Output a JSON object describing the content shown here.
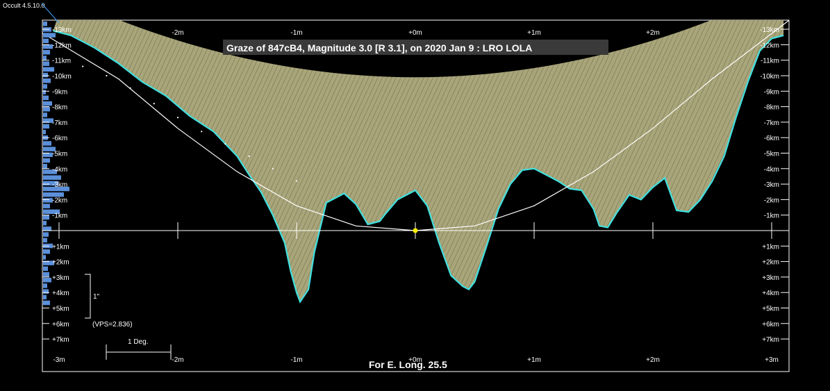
{
  "app_title": "Occult 4.5.10.0",
  "colors": {
    "background": "#000000",
    "limb_fill": "#a9a57a",
    "limb_edge": "#40e0e0",
    "profile_bar": "#5b8fd9",
    "grid": "#ffffff",
    "observer_marker": "#ffee00"
  },
  "chart_data": {
    "type": "line",
    "title": "Graze of  847cB4,  Magnitude 3.0 [R 3.1],  on 2020 Jan  9  :  LRO LOLA",
    "footer": "For E. Long. 25.5",
    "x_tick_labels_top": [
      "-3m",
      "-2m",
      "-1m",
      "+0m",
      "+1m",
      "+2m",
      "+3m"
    ],
    "x_tick_labels_bottom": [
      "-3m",
      "-2m",
      "-1m",
      "+0m",
      "+1m",
      "+2m",
      "+3m"
    ],
    "x_ticks": [
      -3,
      -2,
      -1,
      0,
      1,
      2,
      3
    ],
    "xlim": [
      -3.15,
      3.15
    ],
    "ylim": [
      -14,
      9
    ],
    "y_tick_labels": [
      "-13km",
      "-12km",
      "-11km",
      "-10km",
      "-9km",
      "-8km",
      "-7km",
      "-6km",
      "-5km",
      "-4km",
      "-3km",
      "-2km",
      "-1km",
      "+1km",
      "+2km",
      "+3km",
      "+4km",
      "+5km",
      "+6km",
      "+7km"
    ],
    "y_ticks": [
      -13,
      -12,
      -11,
      -10,
      -9,
      -8,
      -7,
      -6,
      -5,
      -4,
      -3,
      -2,
      -1,
      1,
      2,
      3,
      4,
      5,
      6,
      7
    ],
    "scale_label": "1\"",
    "vps_label": "(VPS=2.836)",
    "degree_label": "1 Deg.",
    "series": [
      {
        "x": [
          -3.05,
          -2.9,
          -2.7,
          -2.5,
          -2.3,
          -2.1,
          -1.9,
          -1.7,
          -1.6,
          -1.5,
          -1.4,
          -1.3,
          -1.2,
          -1.1,
          -1.05,
          -1.0,
          -0.97,
          -0.9,
          -0.85,
          -0.75,
          -0.6,
          -0.5,
          -0.4,
          -0.3,
          -0.25,
          -0.15,
          -0.05,
          0.0,
          0.1,
          0.2,
          0.3,
          0.4,
          0.45,
          0.5,
          0.6,
          0.7,
          0.8,
          0.9,
          1.0,
          1.1,
          1.2,
          1.3,
          1.4,
          1.5,
          1.55,
          1.62,
          1.7,
          1.8,
          1.9,
          2.0,
          2.1,
          2.2,
          2.3,
          2.4,
          2.5,
          2.6,
          2.7,
          2.8,
          2.9,
          3.0,
          3.1
        ],
        "values": [
          -12.9,
          -12.6,
          -11.8,
          -10.8,
          -9.6,
          -8.7,
          -7.4,
          -6.4,
          -5.6,
          -4.8,
          -3.6,
          -2.5,
          -1.0,
          0.8,
          2.6,
          4.0,
          4.6,
          3.8,
          1.4,
          -1.8,
          -2.4,
          -1.7,
          -0.4,
          -0.6,
          -1.1,
          -2.0,
          -2.4,
          -2.6,
          -1.6,
          0.8,
          2.9,
          3.6,
          3.8,
          3.3,
          1.0,
          -1.4,
          -3.0,
          -3.9,
          -4.0,
          -3.6,
          -3.2,
          -2.7,
          -2.6,
          -1.4,
          -0.3,
          -0.2,
          -1.2,
          -2.3,
          -2.0,
          -2.8,
          -3.4,
          -1.3,
          -1.2,
          -2.0,
          -3.2,
          -4.8,
          -7.3,
          -9.6,
          -11.6,
          -12.4,
          -12.6
        ]
      },
      {
        "x": [
          -3.15,
          -2.5,
          -2.0,
          -1.5,
          -1.0,
          -0.5,
          0.0,
          0.5,
          1.0,
          1.5,
          2.0,
          2.5,
          3.15
        ],
        "values": [
          -12.8,
          -9.8,
          -6.6,
          -3.8,
          -1.6,
          -0.3,
          0.0,
          -0.3,
          -1.6,
          -3.8,
          -6.6,
          -9.8,
          -13.6
        ]
      },
      {
        "x": [
          -2.8,
          -2.6,
          -2.4,
          -2.2,
          -2.0,
          -1.8,
          -1.6,
          -1.4,
          -1.2,
          -1.0
        ],
        "values": [
          -10.6,
          -10.0,
          -9.2,
          -8.2,
          -7.3,
          -6.4,
          -5.6,
          -4.8,
          -4.0,
          -3.2
        ]
      }
    ]
  }
}
